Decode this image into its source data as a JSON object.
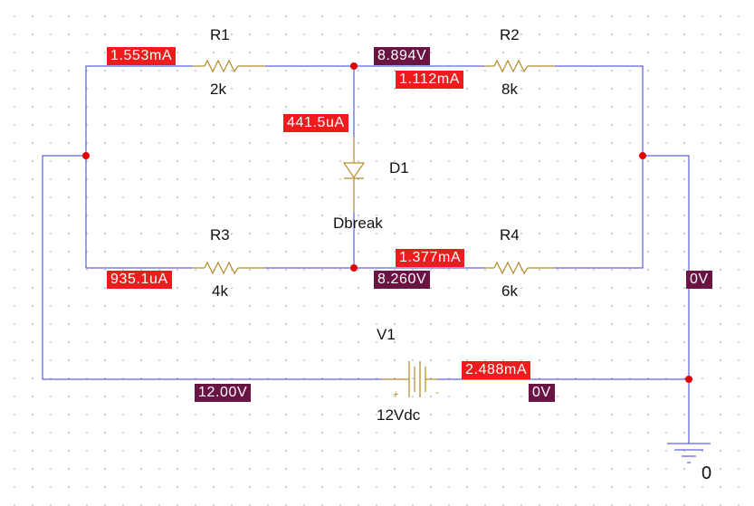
{
  "components": {
    "R1": {
      "name": "R1",
      "value": "2k"
    },
    "R2": {
      "name": "R2",
      "value": "8k"
    },
    "R3": {
      "name": "R3",
      "value": "4k"
    },
    "R4": {
      "name": "R4",
      "value": "6k"
    },
    "D1": {
      "name": "D1",
      "model": "Dbreak"
    },
    "V1": {
      "name": "V1",
      "value": "12Vdc",
      "plus": "+",
      "minus": "-"
    },
    "ground": {
      "label": "0"
    }
  },
  "currents": {
    "r1": "1.553mA",
    "r2": "1.112mA",
    "d1": "441.5uA",
    "r3": "935.1uA",
    "r4": "1.377mA",
    "v1": "2.488mA"
  },
  "voltages": {
    "top_node": "8.894V",
    "bottom_node": "8.260V",
    "right_node": "0V",
    "source_pos": "12.00V",
    "source_neg": "0V"
  },
  "colors": {
    "wire": "#3b3bd1",
    "component": "#b58a2a",
    "node": "#e00000",
    "current_tag": "#ee1c1c",
    "voltage_tag": "#6a1443"
  }
}
